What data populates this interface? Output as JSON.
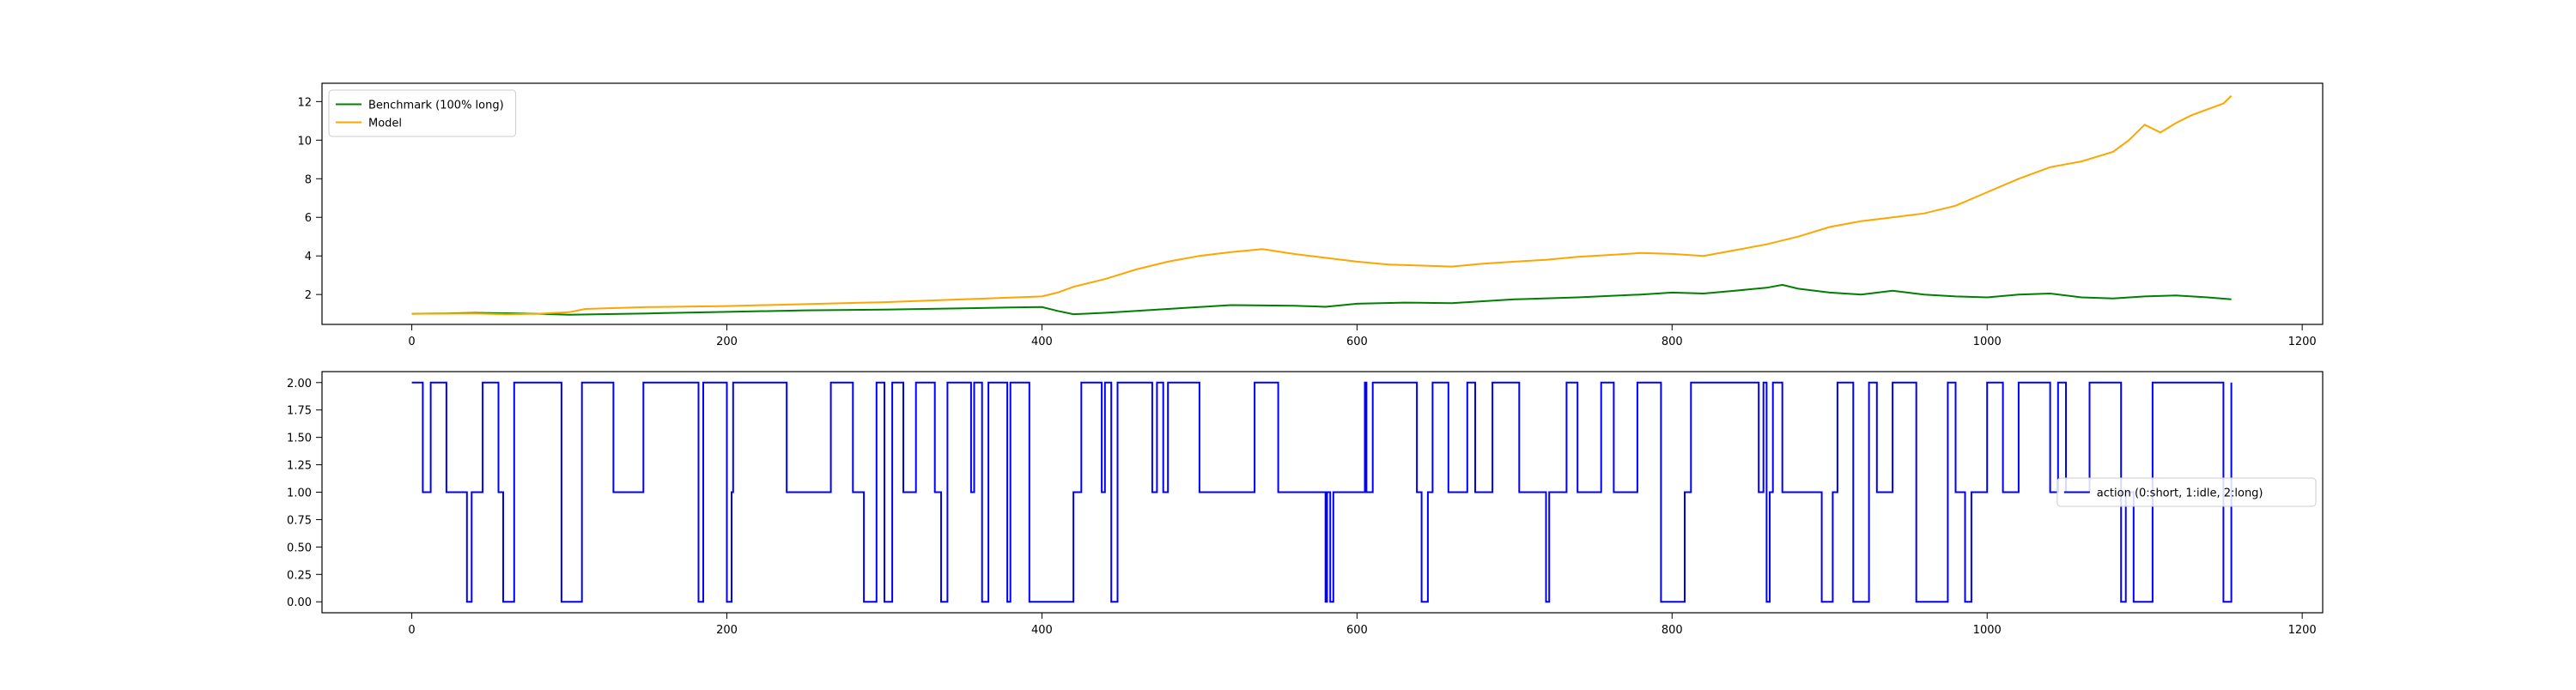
{
  "chart_data": [
    {
      "type": "line",
      "title": "",
      "xlabel": "",
      "ylabel": "",
      "xlim": [
        -57,
        1213
      ],
      "ylim": [
        0.45,
        12.95
      ],
      "x_ticks": [
        "0",
        "200",
        "400",
        "600",
        "800",
        "1000",
        "1200"
      ],
      "y_ticks": [
        "2",
        "4",
        "6",
        "8",
        "10",
        "12"
      ],
      "legend_position": "top-left",
      "series": [
        {
          "name": "Benchmark (100% long)",
          "color": "#008000",
          "points": [
            [
              0,
              1.0
            ],
            [
              20,
              1.02
            ],
            [
              40,
              1.05
            ],
            [
              60,
              1.03
            ],
            [
              80,
              1.0
            ],
            [
              100,
              0.95
            ],
            [
              120,
              0.98
            ],
            [
              150,
              1.02
            ],
            [
              200,
              1.1
            ],
            [
              250,
              1.18
            ],
            [
              300,
              1.22
            ],
            [
              350,
              1.28
            ],
            [
              380,
              1.33
            ],
            [
              400,
              1.35
            ],
            [
              410,
              1.15
            ],
            [
              420,
              0.98
            ],
            [
              440,
              1.05
            ],
            [
              480,
              1.25
            ],
            [
              520,
              1.45
            ],
            [
              560,
              1.42
            ],
            [
              580,
              1.36
            ],
            [
              600,
              1.52
            ],
            [
              630,
              1.58
            ],
            [
              660,
              1.55
            ],
            [
              700,
              1.75
            ],
            [
              740,
              1.85
            ],
            [
              780,
              2.0
            ],
            [
              800,
              2.1
            ],
            [
              820,
              2.05
            ],
            [
              840,
              2.2
            ],
            [
              860,
              2.35
            ],
            [
              870,
              2.5
            ],
            [
              880,
              2.3
            ],
            [
              900,
              2.1
            ],
            [
              920,
              2.0
            ],
            [
              940,
              2.2
            ],
            [
              960,
              2.0
            ],
            [
              980,
              1.9
            ],
            [
              1000,
              1.85
            ],
            [
              1020,
              2.0
            ],
            [
              1040,
              2.05
            ],
            [
              1060,
              1.85
            ],
            [
              1080,
              1.8
            ],
            [
              1100,
              1.9
            ],
            [
              1120,
              1.95
            ],
            [
              1140,
              1.85
            ],
            [
              1155,
              1.75
            ]
          ]
        },
        {
          "name": "Model",
          "color": "#ffa500",
          "points": [
            [
              0,
              1.0
            ],
            [
              40,
              1.02
            ],
            [
              60,
              0.97
            ],
            [
              80,
              1.0
            ],
            [
              100,
              1.08
            ],
            [
              110,
              1.25
            ],
            [
              150,
              1.35
            ],
            [
              200,
              1.4
            ],
            [
              250,
              1.5
            ],
            [
              300,
              1.6
            ],
            [
              350,
              1.75
            ],
            [
              400,
              1.9
            ],
            [
              410,
              2.1
            ],
            [
              420,
              2.4
            ],
            [
              440,
              2.8
            ],
            [
              460,
              3.3
            ],
            [
              480,
              3.7
            ],
            [
              500,
              4.0
            ],
            [
              520,
              4.2
            ],
            [
              540,
              4.35
            ],
            [
              560,
              4.1
            ],
            [
              580,
              3.9
            ],
            [
              600,
              3.7
            ],
            [
              620,
              3.55
            ],
            [
              640,
              3.5
            ],
            [
              660,
              3.45
            ],
            [
              680,
              3.6
            ],
            [
              700,
              3.7
            ],
            [
              720,
              3.8
            ],
            [
              740,
              3.95
            ],
            [
              760,
              4.05
            ],
            [
              780,
              4.15
            ],
            [
              800,
              4.1
            ],
            [
              820,
              4.0
            ],
            [
              840,
              4.3
            ],
            [
              860,
              4.6
            ],
            [
              880,
              5.0
            ],
            [
              900,
              5.5
            ],
            [
              920,
              5.8
            ],
            [
              940,
              6.0
            ],
            [
              960,
              6.2
            ],
            [
              980,
              6.6
            ],
            [
              1000,
              7.3
            ],
            [
              1020,
              8.0
            ],
            [
              1040,
              8.6
            ],
            [
              1060,
              8.9
            ],
            [
              1080,
              9.4
            ],
            [
              1090,
              10.0
            ],
            [
              1100,
              10.8
            ],
            [
              1110,
              10.4
            ],
            [
              1120,
              10.9
            ],
            [
              1130,
              11.3
            ],
            [
              1140,
              11.6
            ],
            [
              1150,
              11.9
            ],
            [
              1155,
              12.3
            ]
          ]
        }
      ]
    },
    {
      "type": "line",
      "title": "",
      "xlabel": "",
      "ylabel": "",
      "xlim": [
        -57,
        1213
      ],
      "ylim": [
        -0.1,
        2.1
      ],
      "x_ticks": [
        "0",
        "200",
        "400",
        "600",
        "800",
        "1000",
        "1200"
      ],
      "y_ticks": [
        "0.00",
        "0.25",
        "0.50",
        "0.75",
        "1.00",
        "1.25",
        "1.50",
        "1.75",
        "2.00"
      ],
      "legend_position": "center-right",
      "step": true,
      "series": [
        {
          "name": "action (0:short, 1:idle, 2:long)",
          "color": "#0000ff",
          "points": [
            [
              0,
              2
            ],
            [
              7,
              1
            ],
            [
              12,
              2
            ],
            [
              22,
              1
            ],
            [
              35,
              0
            ],
            [
              38,
              1
            ],
            [
              45,
              2
            ],
            [
              55,
              1
            ],
            [
              58,
              0
            ],
            [
              65,
              2
            ],
            [
              95,
              0
            ],
            [
              108,
              2
            ],
            [
              128,
              1
            ],
            [
              147,
              2
            ],
            [
              182,
              0
            ],
            [
              185,
              2
            ],
            [
              200,
              0
            ],
            [
              203,
              1
            ],
            [
              204,
              2
            ],
            [
              238,
              1
            ],
            [
              266,
              2
            ],
            [
              280,
              1
            ],
            [
              287,
              0
            ],
            [
              295,
              2
            ],
            [
              300,
              0
            ],
            [
              305,
              2
            ],
            [
              312,
              1
            ],
            [
              320,
              2
            ],
            [
              332,
              1
            ],
            [
              336,
              0
            ],
            [
              340,
              2
            ],
            [
              355,
              1
            ],
            [
              357,
              2
            ],
            [
              362,
              0
            ],
            [
              366,
              2
            ],
            [
              378,
              0
            ],
            [
              380,
              2
            ],
            [
              392,
              0
            ],
            [
              420,
              1
            ],
            [
              425,
              2
            ],
            [
              438,
              1
            ],
            [
              440,
              2
            ],
            [
              444,
              0
            ],
            [
              448,
              2
            ],
            [
              470,
              1
            ],
            [
              473,
              2
            ],
            [
              477,
              1
            ],
            [
              480,
              2
            ],
            [
              500,
              1
            ],
            [
              535,
              2
            ],
            [
              550,
              1
            ],
            [
              580,
              0
            ],
            [
              581,
              1
            ],
            [
              583,
              0
            ],
            [
              585,
              1
            ],
            [
              605,
              2
            ],
            [
              606,
              1
            ],
            [
              610,
              2
            ],
            [
              638,
              1
            ],
            [
              641,
              0
            ],
            [
              645,
              1
            ],
            [
              648,
              2
            ],
            [
              658,
              1
            ],
            [
              670,
              2
            ],
            [
              675,
              1
            ],
            [
              686,
              2
            ],
            [
              703,
              1
            ],
            [
              720,
              0
            ],
            [
              722,
              1
            ],
            [
              733,
              2
            ],
            [
              740,
              1
            ],
            [
              755,
              2
            ],
            [
              763,
              1
            ],
            [
              778,
              2
            ],
            [
              793,
              0
            ],
            [
              808,
              1
            ],
            [
              812,
              2
            ],
            [
              855,
              1
            ],
            [
              858,
              2
            ],
            [
              860,
              0
            ],
            [
              862,
              1
            ],
            [
              864,
              2
            ],
            [
              870,
              1
            ],
            [
              895,
              0
            ],
            [
              902,
              1
            ],
            [
              905,
              2
            ],
            [
              915,
              0
            ],
            [
              925,
              2
            ],
            [
              930,
              1
            ],
            [
              940,
              2
            ],
            [
              955,
              0
            ],
            [
              975,
              2
            ],
            [
              980,
              1
            ],
            [
              986,
              0
            ],
            [
              990,
              1
            ],
            [
              1000,
              2
            ],
            [
              1010,
              1
            ],
            [
              1020,
              2
            ],
            [
              1040,
              1
            ],
            [
              1045,
              2
            ],
            [
              1050,
              1
            ],
            [
              1065,
              2
            ],
            [
              1085,
              0
            ],
            [
              1088,
              1
            ],
            [
              1093,
              0
            ],
            [
              1105,
              2
            ],
            [
              1150,
              0
            ],
            [
              1155,
              2
            ]
          ]
        }
      ]
    }
  ]
}
